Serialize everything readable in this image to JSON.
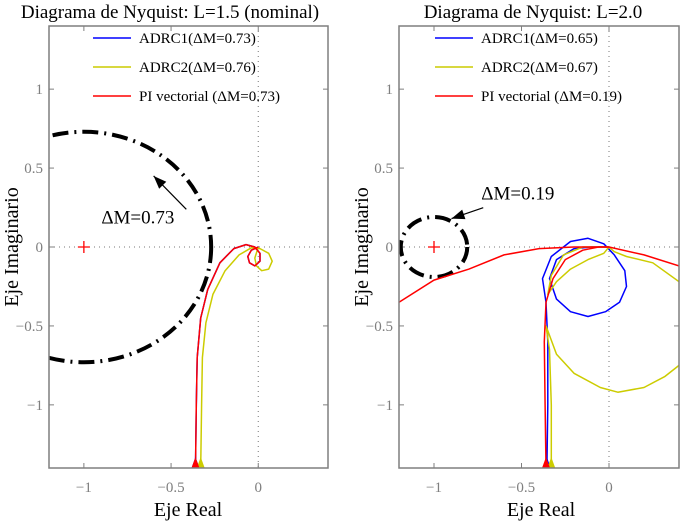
{
  "chart_data": [
    {
      "type": "line",
      "title": "Diagrama de Nyquist: L=1.5 (nominal)",
      "xlabel": "Eje Real",
      "ylabel": "Eje Imaginario",
      "xlim": [
        -1.2,
        0.4
      ],
      "ylim": [
        -1.4,
        1.4
      ],
      "xticks": [
        -1,
        -0.5,
        0
      ],
      "xtick_labels": [
        "−1",
        "−0.5",
        "0"
      ],
      "yticks": [
        -1,
        -0.5,
        0,
        0.5,
        1
      ],
      "ytick_labels": [
        "−1",
        "−0.5",
        "0",
        "0.5",
        "1"
      ],
      "grid": false,
      "legend_placement": "top",
      "critical_point": [
        -1,
        0
      ],
      "circle": {
        "center": [
          -1,
          0
        ],
        "radius": 0.73,
        "style": "dash-dot"
      },
      "annotation": {
        "text": "ΔM=0.73",
        "at": [
          -0.9,
          0.15
        ],
        "arrow_to": [
          -0.6,
          0.45
        ]
      },
      "series": [
        {
          "name": "ADRC1(ΔM=0.73)",
          "color": "#0000ff",
          "points": [
            [
              -0.36,
              -1.4
            ],
            [
              -0.355,
              -1.0
            ],
            [
              -0.35,
              -0.7
            ],
            [
              -0.33,
              -0.45
            ],
            [
              -0.29,
              -0.27
            ],
            [
              -0.22,
              -0.1
            ],
            [
              -0.14,
              -0.01
            ],
            [
              -0.07,
              0.015
            ],
            [
              -0.02,
              0.0
            ],
            [
              0.01,
              -0.04
            ],
            [
              0.01,
              -0.09
            ],
            [
              -0.02,
              -0.12
            ],
            [
              -0.05,
              -0.1
            ],
            [
              -0.06,
              -0.06
            ],
            [
              -0.04,
              -0.02
            ],
            [
              0,
              0
            ]
          ]
        },
        {
          "name": "ADRC2(ΔM=0.76)",
          "color": "#cccc00",
          "points": [
            [
              -0.33,
              -1.4
            ],
            [
              -0.325,
              -1.0
            ],
            [
              -0.32,
              -0.7
            ],
            [
              -0.3,
              -0.48
            ],
            [
              -0.26,
              -0.3
            ],
            [
              -0.19,
              -0.15
            ],
            [
              -0.11,
              -0.05
            ],
            [
              -0.04,
              -0.005
            ],
            [
              0.01,
              -0.01
            ],
            [
              0.06,
              -0.04
            ],
            [
              0.08,
              -0.09
            ],
            [
              0.06,
              -0.14
            ],
            [
              0.02,
              -0.15
            ],
            [
              -0.01,
              -0.12
            ],
            [
              -0.02,
              -0.07
            ],
            [
              0,
              0
            ]
          ]
        },
        {
          "name": "PI vectorial (ΔM=0.73)",
          "color": "#ff0000",
          "points": [
            [
              -0.36,
              -1.4
            ],
            [
              -0.355,
              -1.0
            ],
            [
              -0.35,
              -0.7
            ],
            [
              -0.33,
              -0.45
            ],
            [
              -0.29,
              -0.27
            ],
            [
              -0.22,
              -0.1
            ],
            [
              -0.14,
              -0.01
            ],
            [
              -0.07,
              0.015
            ],
            [
              -0.02,
              0.0
            ],
            [
              0.01,
              -0.04
            ],
            [
              0.01,
              -0.09
            ],
            [
              -0.02,
              -0.12
            ],
            [
              -0.05,
              -0.1
            ],
            [
              -0.06,
              -0.06
            ],
            [
              -0.04,
              -0.02
            ],
            [
              0,
              0
            ]
          ]
        }
      ]
    },
    {
      "type": "line",
      "title": "Diagrama de Nyquist: L=2.0",
      "xlabel": "Eje Real",
      "ylabel": "Eje Imaginario",
      "xlim": [
        -1.2,
        0.4
      ],
      "ylim": [
        -1.4,
        1.4
      ],
      "xticks": [
        -1,
        -0.5,
        0
      ],
      "xtick_labels": [
        "−1",
        "−0.5",
        "0"
      ],
      "yticks": [
        -1,
        -0.5,
        0,
        0.5,
        1
      ],
      "ytick_labels": [
        "−1",
        "−0.5",
        "0",
        "0.5",
        "1"
      ],
      "grid": false,
      "legend_placement": "top",
      "critical_point": [
        -1,
        0
      ],
      "circle": {
        "center": [
          -1,
          0
        ],
        "radius": 0.19,
        "style": "dash-dot"
      },
      "annotation": {
        "text": "ΔM=0.19",
        "at": [
          -0.73,
          0.3
        ],
        "arrow_to": [
          -0.9,
          0.18
        ]
      },
      "series": [
        {
          "name": "ADRC1(ΔM=0.65)",
          "color": "#0000ff",
          "points": [
            [
              -0.355,
              -1.4
            ],
            [
              -0.35,
              -1.0
            ],
            [
              -0.35,
              -0.6
            ],
            [
              -0.36,
              -0.35
            ],
            [
              -0.38,
              -0.2
            ],
            [
              -0.33,
              -0.06
            ],
            [
              -0.22,
              0.035
            ],
            [
              -0.12,
              0.055
            ],
            [
              -0.03,
              0.02
            ],
            [
              0.03,
              -0.05
            ],
            [
              0.09,
              -0.15
            ],
            [
              0.1,
              -0.25
            ],
            [
              0.06,
              -0.35
            ],
            [
              -0.02,
              -0.41
            ],
            [
              -0.12,
              -0.44
            ],
            [
              -0.22,
              -0.41
            ],
            [
              -0.3,
              -0.33
            ],
            [
              -0.34,
              -0.2
            ],
            [
              -0.3,
              -0.08
            ],
            [
              -0.2,
              -0.01
            ],
            [
              -0.1,
              0.0
            ],
            [
              0,
              0
            ]
          ]
        },
        {
          "name": "ADRC2(ΔM=0.67)",
          "color": "#cccc00",
          "points": [
            [
              -0.33,
              -1.4
            ],
            [
              -0.33,
              -1.0
            ],
            [
              -0.34,
              -0.65
            ],
            [
              -0.36,
              -0.5
            ],
            [
              -0.3,
              -0.68
            ],
            [
              -0.2,
              -0.8
            ],
            [
              -0.05,
              -0.89
            ],
            [
              0.05,
              -0.92
            ],
            [
              0.2,
              -0.89
            ],
            [
              0.32,
              -0.82
            ],
            [
              0.4,
              -0.75
            ],
            [
              0.45,
              -0.6
            ],
            [
              0.45,
              -0.3
            ],
            [
              0.4,
              -0.22
            ],
            [
              0.25,
              -0.1
            ],
            [
              0.1,
              -0.06
            ],
            [
              0.03,
              -0.03
            ],
            [
              0,
              0
            ],
            [
              -0.03,
              -0.04
            ],
            [
              -0.12,
              -0.08
            ],
            [
              -0.22,
              -0.14
            ],
            [
              -0.3,
              -0.22
            ],
            [
              -0.35,
              -0.3
            ],
            [
              -0.33,
              -0.18
            ],
            [
              -0.26,
              -0.05
            ],
            [
              -0.15,
              0.0
            ],
            [
              -0.05,
              0.0
            ],
            [
              0,
              0
            ]
          ]
        },
        {
          "name": "PI vectorial (ΔM=0.19)",
          "color": "#ff0000",
          "points": [
            [
              -0.36,
              -1.4
            ],
            [
              -0.365,
              -1.0
            ],
            [
              -0.37,
              -0.6
            ],
            [
              -0.36,
              -0.35
            ],
            [
              -0.32,
              -0.2
            ],
            [
              -0.25,
              -0.08
            ],
            [
              -0.15,
              -0.02
            ],
            [
              -0.06,
              0.0
            ],
            [
              0,
              0
            ],
            [
              0.2,
              -0.05
            ],
            [
              0.4,
              -0.12
            ]
          ],
          "branch": [
            [
              -1.2,
              -0.35
            ],
            [
              -1.0,
              -0.21
            ],
            [
              -0.8,
              -0.14
            ],
            [
              -0.6,
              -0.05
            ],
            [
              -0.4,
              -0.01
            ],
            [
              -0.2,
              0.0
            ],
            [
              0,
              0
            ]
          ]
        }
      ]
    }
  ]
}
